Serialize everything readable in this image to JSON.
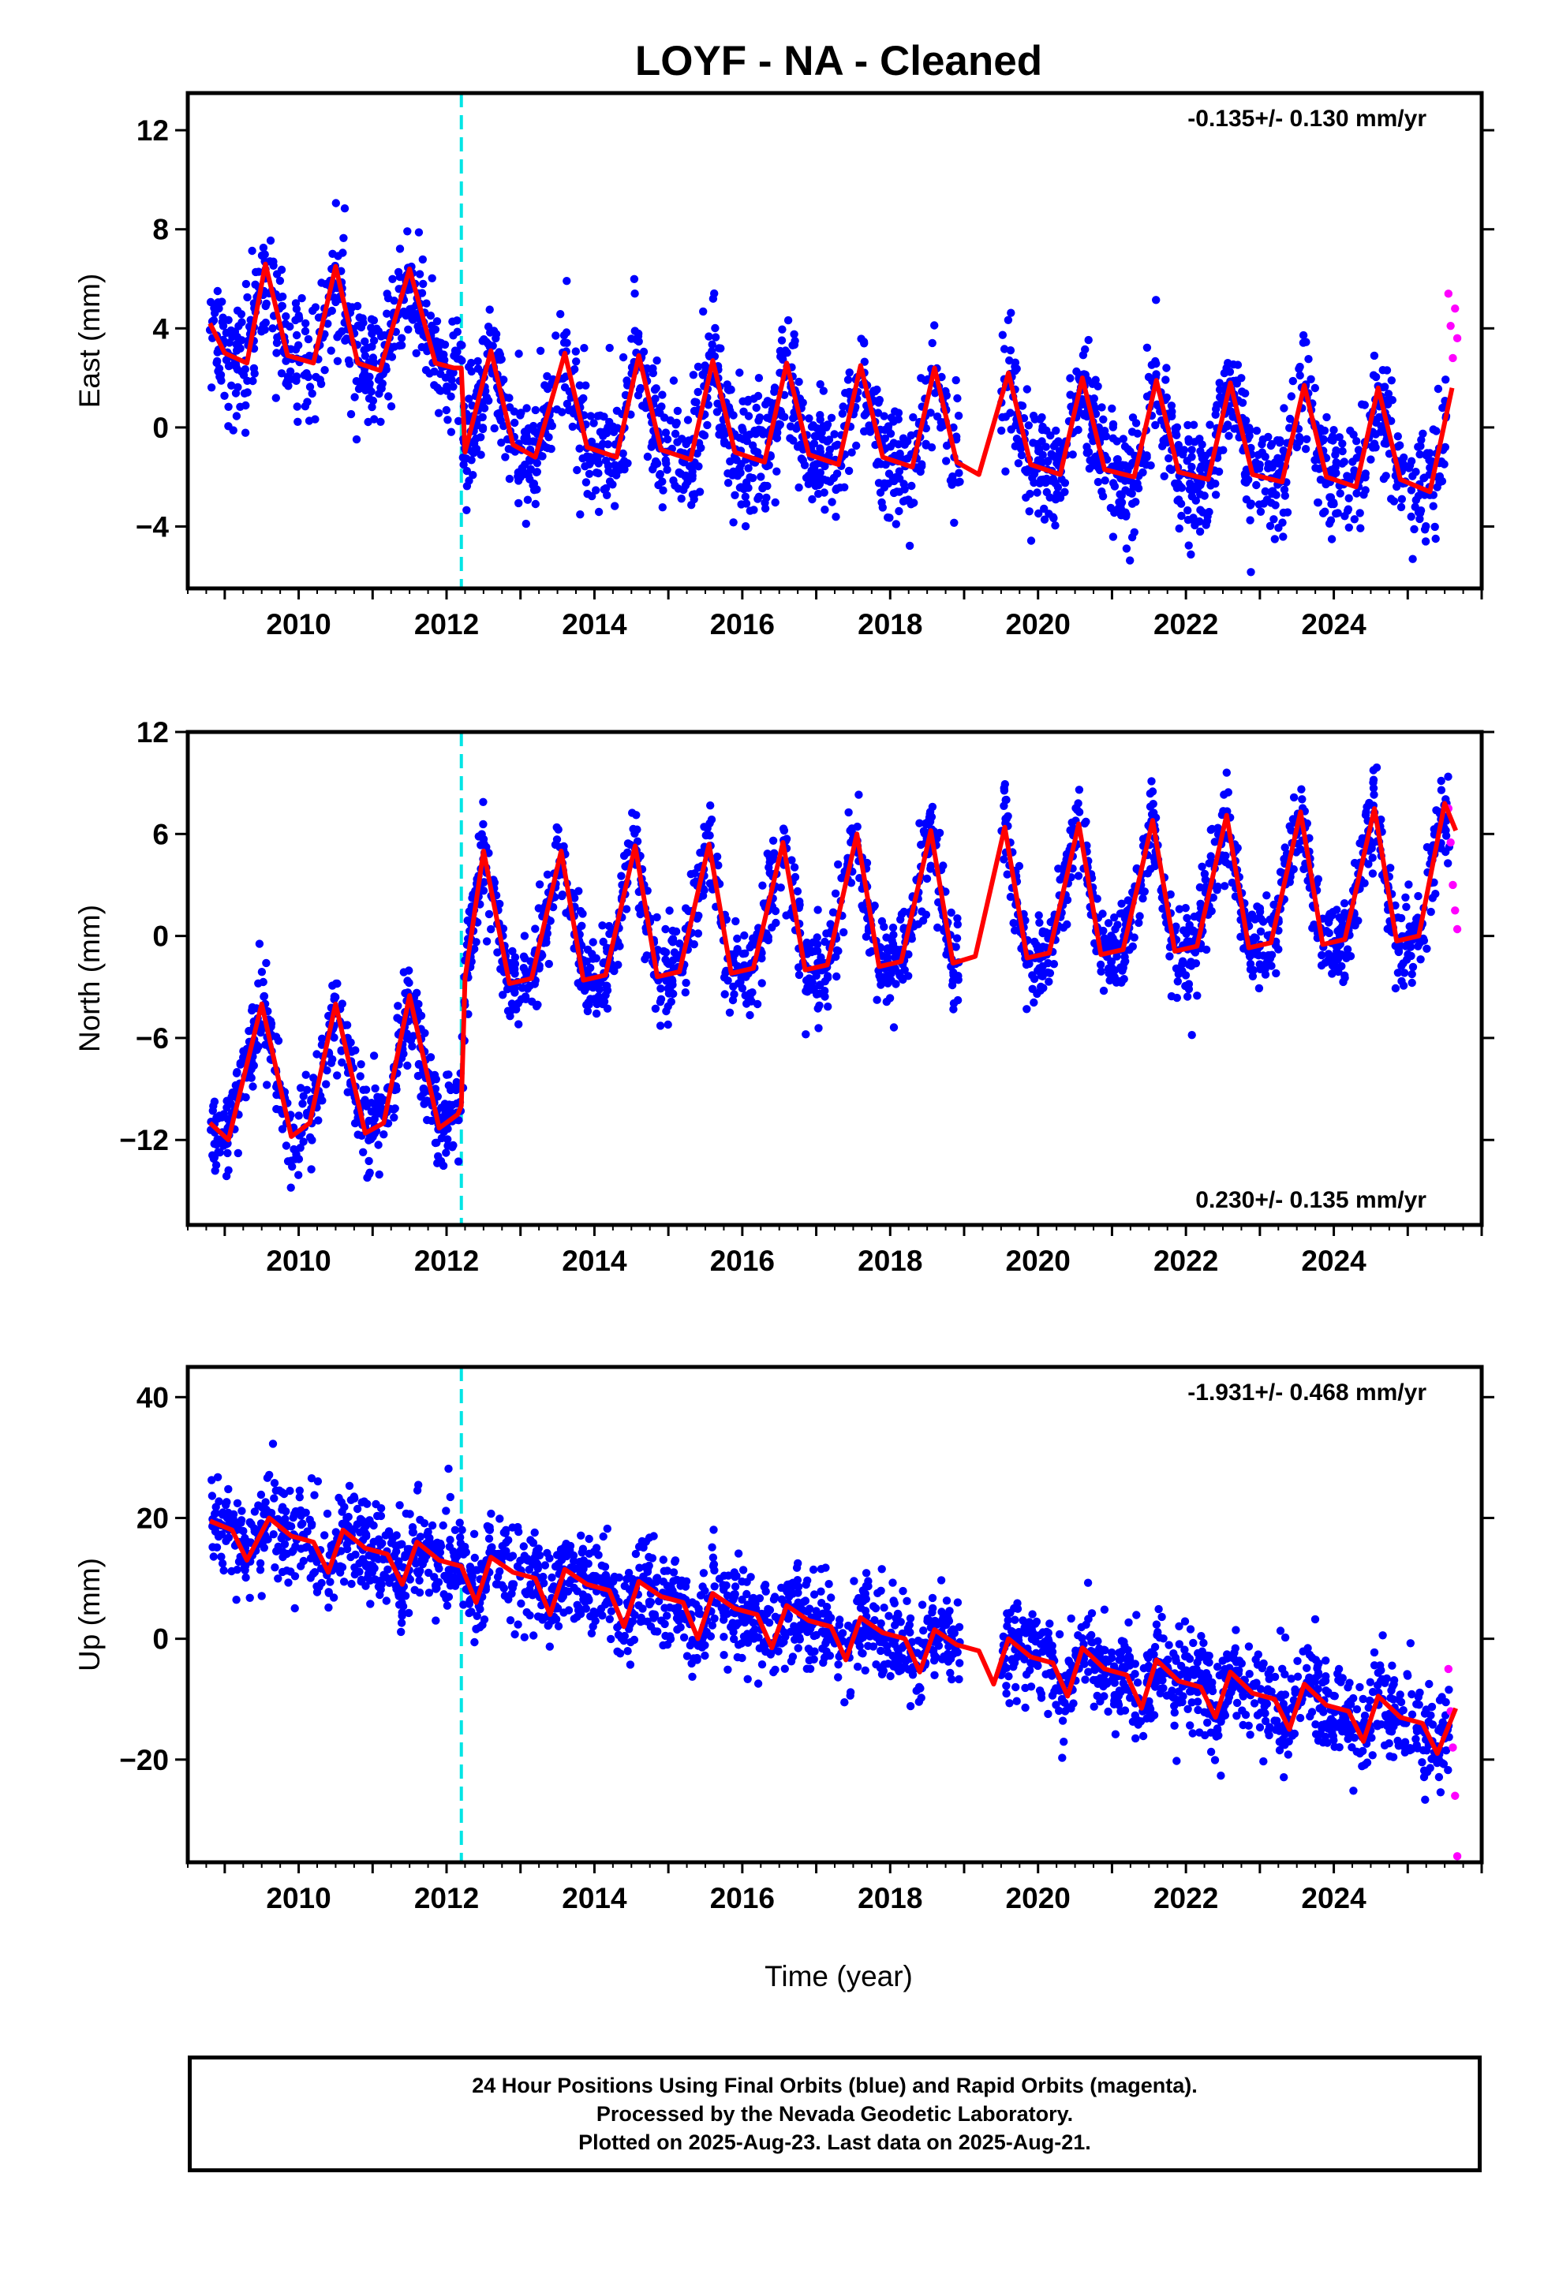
{
  "title": "LOYF  - NA - Cleaned",
  "xlabel": "Time (year)",
  "footer": {
    "line1": "24 Hour Positions Using Final Orbits (blue) and Rapid Orbits (magenta).",
    "line2": "Processed by the Nevada Geodetic Laboratory.",
    "line3": "Plotted on 2025-Aug-23. Last data on 2025-Aug-21."
  },
  "colors": {
    "final": "#0000ff",
    "rapid": "#ff00ff",
    "model": "#ff0000",
    "break": "#00e5e5"
  },
  "chart_data": [
    {
      "type": "scatter",
      "component": "east",
      "ylabel": "East (mm)",
      "rate": "-0.135+/- 0.130 mm/yr",
      "rate_position": "top-right",
      "xlim": [
        2008.5,
        2026.0
      ],
      "ylim": [
        -6.5,
        13.5
      ],
      "yticks": [
        12,
        8,
        4,
        0,
        -4
      ],
      "ytick_labels": [
        "12",
        "8",
        "4",
        "0",
        "−4"
      ],
      "xticks": [
        2010,
        2012,
        2014,
        2016,
        2018,
        2020,
        2022,
        2024
      ],
      "break_epochs": [
        2012.2
      ],
      "model_curve_samples": {
        "x": [
          2008.8,
          2009.0,
          2009.3,
          2009.55,
          2009.85,
          2010.2,
          2010.5,
          2010.8,
          2011.1,
          2011.5,
          2011.85,
          2012.1,
          2012.2,
          2012.25,
          2012.6,
          2012.9,
          2013.2,
          2013.6,
          2013.9,
          2014.3,
          2014.6,
          2014.9,
          2015.3,
          2015.6,
          2015.9,
          2016.3,
          2016.6,
          2016.9,
          2017.3,
          2017.6,
          2017.9,
          2018.3,
          2018.6,
          2018.9,
          2019.2,
          2019.6,
          2019.9,
          2020.3,
          2020.6,
          2020.9,
          2021.3,
          2021.6,
          2021.9,
          2022.3,
          2022.6,
          2022.9,
          2023.3,
          2023.6,
          2023.9,
          2024.3,
          2024.6,
          2024.9,
          2025.3,
          2025.6
        ],
        "y": [
          4.2,
          3.0,
          2.6,
          6.6,
          2.9,
          2.6,
          6.5,
          2.6,
          2.3,
          6.4,
          2.6,
          2.4,
          2.4,
          -1.0,
          3.1,
          -0.7,
          -1.2,
          3.0,
          -0.8,
          -1.2,
          2.9,
          -0.9,
          -1.3,
          2.7,
          -1.0,
          -1.4,
          2.6,
          -1.1,
          -1.5,
          2.5,
          -1.2,
          -1.6,
          2.4,
          -1.4,
          -1.9,
          2.2,
          -1.5,
          -1.9,
          2.0,
          -1.7,
          -2.0,
          1.9,
          -1.8,
          -2.1,
          1.8,
          -1.9,
          -2.2,
          1.7,
          -2.0,
          -2.4,
          1.6,
          -2.1,
          -2.6,
          1.6
        ]
      },
      "series": [
        {
          "name": "Final Orbits",
          "sample_count": 2400,
          "spread_sd": 1.2
        },
        {
          "name": "Rapid Orbits",
          "x": [
            2025.55,
            2025.58,
            2025.61,
            2025.64,
            2025.67
          ],
          "y": [
            5.4,
            4.1,
            2.8,
            4.8,
            3.6
          ]
        }
      ]
    },
    {
      "type": "scatter",
      "component": "north",
      "ylabel": "North (mm)",
      "rate": "0.230+/- 0.135 mm/yr",
      "rate_position": "bottom-right",
      "xlim": [
        2008.5,
        2026.0
      ],
      "ylim": [
        -17,
        12
      ],
      "yticks": [
        12,
        6,
        0,
        -6,
        -12
      ],
      "ytick_labels": [
        "12",
        "6",
        "0",
        "−6",
        "−12"
      ],
      "xticks": [
        2010,
        2012,
        2014,
        2016,
        2018,
        2020,
        2022,
        2024
      ],
      "break_epochs": [
        2012.2
      ],
      "model_curve_samples": {
        "x": [
          2008.8,
          2009.05,
          2009.5,
          2009.9,
          2010.15,
          2010.5,
          2010.9,
          2011.15,
          2011.5,
          2011.9,
          2012.15,
          2012.2,
          2012.25,
          2012.5,
          2012.85,
          2013.15,
          2013.55,
          2013.85,
          2014.15,
          2014.55,
          2014.85,
          2015.15,
          2015.55,
          2015.85,
          2016.15,
          2016.55,
          2016.85,
          2017.15,
          2017.55,
          2017.85,
          2018.15,
          2018.55,
          2018.85,
          2019.15,
          2019.55,
          2019.85,
          2020.15,
          2020.55,
          2020.85,
          2021.15,
          2021.55,
          2021.85,
          2022.15,
          2022.55,
          2022.85,
          2023.15,
          2023.55,
          2023.85,
          2024.15,
          2024.55,
          2024.85,
          2025.15,
          2025.5,
          2025.65
        ],
        "y": [
          -11.0,
          -12.0,
          -4.0,
          -11.8,
          -11.0,
          -4.0,
          -11.6,
          -11.0,
          -3.5,
          -11.3,
          -10.5,
          -10.0,
          -2.5,
          5.0,
          -2.8,
          -2.5,
          5.0,
          -2.6,
          -2.3,
          5.3,
          -2.4,
          -2.1,
          5.4,
          -2.2,
          -1.9,
          5.5,
          -2.0,
          -1.7,
          6.0,
          -1.8,
          -1.5,
          6.2,
          -1.6,
          -1.2,
          6.4,
          -1.3,
          -1.0,
          6.6,
          -1.1,
          -0.8,
          6.8,
          -0.9,
          -0.6,
          7.1,
          -0.7,
          -0.4,
          7.3,
          -0.5,
          -0.2,
          7.5,
          -0.3,
          0.0,
          7.8,
          6.2
        ]
      },
      "series": [
        {
          "name": "Final Orbits",
          "sample_count": 2400,
          "spread_sd": 1.3
        },
        {
          "name": "Rapid Orbits",
          "x": [
            2025.55,
            2025.58,
            2025.61,
            2025.64,
            2025.67
          ],
          "y": [
            7.5,
            5.5,
            3.0,
            1.5,
            0.4
          ]
        }
      ]
    },
    {
      "type": "scatter",
      "component": "up",
      "ylabel": "Up (mm)",
      "rate": "-1.931+/- 0.468 mm/yr",
      "rate_position": "top-right",
      "xlim": [
        2008.5,
        2026.0
      ],
      "ylim": [
        -37,
        45
      ],
      "yticks": [
        40,
        20,
        0,
        -20
      ],
      "ytick_labels": [
        "40",
        "20",
        "0",
        "−20"
      ],
      "xticks": [
        2010,
        2012,
        2014,
        2016,
        2018,
        2020,
        2022,
        2024
      ],
      "break_epochs": [
        2012.2
      ],
      "model_curve_samples": {
        "x": [
          2008.8,
          2009.1,
          2009.3,
          2009.6,
          2009.9,
          2010.2,
          2010.4,
          2010.6,
          2010.9,
          2011.2,
          2011.4,
          2011.6,
          2011.9,
          2012.2,
          2012.4,
          2012.6,
          2012.9,
          2013.2,
          2013.4,
          2013.6,
          2013.9,
          2014.2,
          2014.4,
          2014.6,
          2014.9,
          2015.2,
          2015.4,
          2015.6,
          2015.9,
          2016.2,
          2016.4,
          2016.6,
          2016.9,
          2017.2,
          2017.4,
          2017.6,
          2017.9,
          2018.2,
          2018.4,
          2018.6,
          2018.9,
          2019.2,
          2019.4,
          2019.6,
          2019.9,
          2020.2,
          2020.4,
          2020.6,
          2020.9,
          2021.2,
          2021.4,
          2021.6,
          2021.9,
          2022.2,
          2022.4,
          2022.6,
          2022.9,
          2023.2,
          2023.4,
          2023.6,
          2023.9,
          2024.2,
          2024.4,
          2024.6,
          2024.9,
          2025.2,
          2025.4,
          2025.65
        ],
        "y": [
          19.5,
          18.0,
          13.0,
          20.0,
          17.0,
          16.0,
          11.0,
          18.0,
          15.0,
          14.0,
          9.0,
          16.0,
          13.0,
          12.0,
          6.0,
          13.5,
          11.0,
          10.0,
          4.0,
          11.5,
          9.0,
          8.0,
          2.0,
          9.5,
          7.0,
          6.0,
          0.0,
          7.5,
          5.0,
          4.0,
          -1.5,
          5.5,
          3.0,
          2.0,
          -3.5,
          3.5,
          1.0,
          0.0,
          -5.5,
          1.5,
          -1.0,
          -2.0,
          -7.5,
          0.0,
          -3.0,
          -4.0,
          -9.5,
          -1.5,
          -5.0,
          -6.0,
          -11.5,
          -3.5,
          -7.0,
          -8.0,
          -13.0,
          -5.5,
          -9.0,
          -10.0,
          -15.0,
          -7.5,
          -11.0,
          -12.0,
          -17.0,
          -9.5,
          -13.0,
          -14.0,
          -19.0,
          -11.5
        ]
      },
      "series": [
        {
          "name": "Final Orbits",
          "sample_count": 2400,
          "spread_sd": 4.0
        },
        {
          "name": "Rapid Orbits",
          "x": [
            2025.55,
            2025.58,
            2025.61,
            2025.64,
            2025.67
          ],
          "y": [
            -5.0,
            -12.0,
            -18.0,
            -26.0,
            -36.0
          ]
        }
      ]
    }
  ]
}
